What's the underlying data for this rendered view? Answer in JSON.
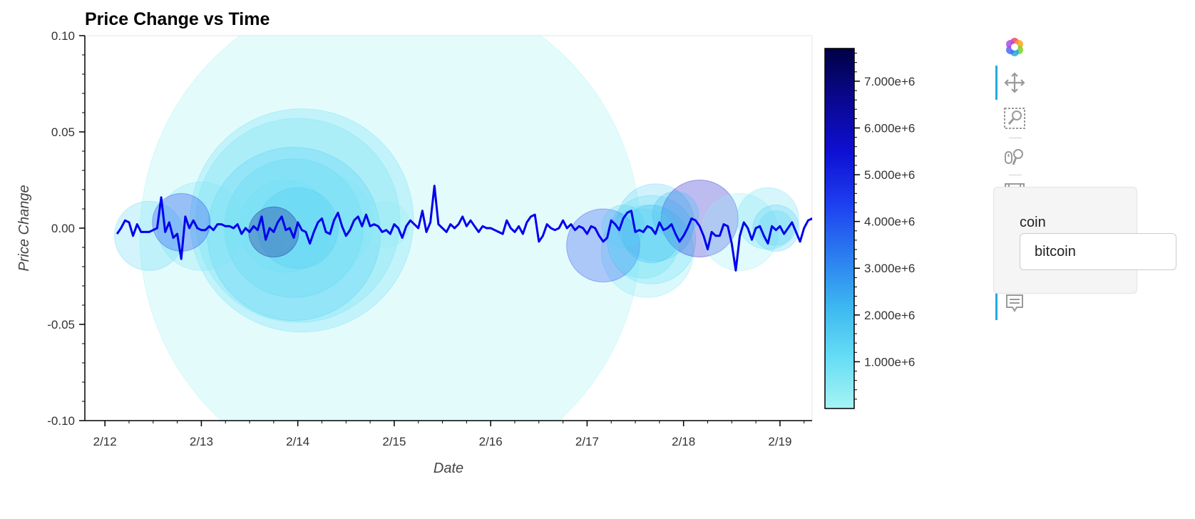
{
  "chart_data": {
    "type": "line",
    "title": "Price Change vs Time",
    "xlabel": "Date",
    "ylabel": "Price Change",
    "xlim": [
      "2/11 19:00",
      "2/19 08:00"
    ],
    "ylim": [
      -0.1,
      0.1
    ],
    "x_ticks": [
      "2/12",
      "2/13",
      "2/14",
      "2/15",
      "2/16",
      "2/17",
      "2/18",
      "2/19"
    ],
    "y_ticks": [
      "0.10",
      "0.05",
      "0.00",
      "-0.05",
      "-0.10"
    ],
    "grid": false,
    "series": [
      {
        "color": "#0000ee",
        "x_start": "2/12 03:00",
        "x_step_hours": 1,
        "values": [
          -0.003,
          0.0,
          0.004,
          0.003,
          -0.004,
          0.002,
          -0.002,
          -0.002,
          -0.002,
          -0.001,
          0.0,
          0.016,
          -0.002,
          0.003,
          -0.005,
          -0.003,
          -0.016,
          0.006,
          0.0,
          0.004,
          0.0,
          -0.001,
          -0.001,
          0.001,
          -0.001,
          0.002,
          0.002,
          0.001,
          0.001,
          0.0,
          0.002,
          -0.003,
          0.0,
          -0.002,
          0.001,
          -0.001,
          0.006,
          -0.006,
          0.0,
          -0.002,
          0.003,
          0.006,
          -0.001,
          0.0,
          -0.005,
          0.003,
          -0.001,
          -0.002,
          -0.008,
          -0.002,
          0.003,
          0.005,
          -0.002,
          -0.003,
          0.004,
          0.008,
          0.001,
          -0.004,
          -0.001,
          0.004,
          0.006,
          0.001,
          0.007,
          0.001,
          0.002,
          0.001,
          -0.002,
          -0.001,
          -0.003,
          0.002,
          0.0,
          -0.005,
          0.001,
          0.004,
          0.002,
          0.0,
          0.009,
          -0.002,
          0.003,
          0.022,
          0.002,
          0.0,
          -0.002,
          0.002,
          0.0,
          0.002,
          0.006,
          0.001,
          0.004,
          0.001,
          -0.002,
          0.001,
          0.0,
          0.0,
          -0.001,
          -0.002,
          -0.003,
          0.004,
          0.0,
          -0.002,
          0.001,
          -0.003,
          0.003,
          0.006,
          0.007,
          -0.007,
          -0.004,
          0.002,
          0.0,
          -0.001,
          0.0,
          0.004,
          0.0,
          0.002,
          -0.001,
          0.001,
          0.0,
          -0.003,
          0.001,
          0.0,
          -0.004,
          -0.007,
          -0.005,
          0.004,
          0.002,
          -0.001,
          0.005,
          0.008,
          0.009,
          -0.002,
          -0.001,
          -0.002,
          0.001,
          0.0,
          -0.003,
          0.003,
          -0.001,
          0.0,
          0.002,
          -0.003,
          -0.007,
          -0.004,
          0.0,
          0.005,
          0.004,
          0.001,
          -0.004,
          -0.011,
          -0.002,
          -0.004,
          -0.004,
          0.002,
          0.001,
          -0.008,
          -0.022,
          -0.004,
          0.003,
          0.0,
          -0.006,
          0.0,
          0.001,
          -0.004,
          -0.008,
          0.001,
          -0.001,
          0.001,
          -0.003,
          0.0,
          0.003,
          -0.002,
          -0.007,
          0.0,
          0.004,
          0.005,
          0.001,
          0.001,
          -0.005,
          0.0,
          0.0,
          0.001,
          0.0,
          -0.003,
          0.004,
          -0.001,
          0.003,
          0.002,
          -0.005,
          0.0,
          -0.013,
          0.005,
          0.001,
          -0.005,
          -0.001,
          0.003,
          -0.013,
          0.009,
          -0.003,
          0.0,
          0.003,
          0.002,
          -0.003,
          0.0,
          0.002,
          0.001,
          -0.002,
          0.004,
          -0.001,
          0.004,
          0.001,
          -0.002,
          0.0,
          0.001,
          0.0,
          0.001
        ]
      }
    ],
    "bubbles": {
      "size_meaning": "volume",
      "points": [
        {
          "x": "2/12 11:00",
          "y": -0.004,
          "volume": 1200000,
          "r_units": 0.018
        },
        {
          "x": "2/12 19:00",
          "y": 0.003,
          "volume": 4500000,
          "r_units": 0.015
        },
        {
          "x": "2/13 00:00",
          "y": 0.001,
          "volume": 700000,
          "r_units": 0.023
        },
        {
          "x": "2/13 18:00",
          "y": -0.002,
          "volume": 6800000,
          "r_units": 0.013
        },
        {
          "x": "2/13 21:00",
          "y": 0.001,
          "volume": 900000,
          "r_units": 0.024
        },
        {
          "x": "2/13 23:00",
          "y": 0.0,
          "volume": 1300000,
          "r_units": 0.036
        },
        {
          "x": "2/13 23:00",
          "y": -0.003,
          "volume": 1500000,
          "r_units": 0.045
        },
        {
          "x": "2/14 00:00",
          "y": 0.004,
          "volume": 900000,
          "r_units": 0.053
        },
        {
          "x": "2/14 01:00",
          "y": 0.004,
          "volume": 1000000,
          "r_units": 0.058
        },
        {
          "x": "2/14 00:00",
          "y": 0.0,
          "volume": 1700000,
          "r_units": 0.021
        },
        {
          "x": "2/14 07:00",
          "y": 0.003,
          "volume": 600000,
          "r_units": 0.025
        },
        {
          "x": "2/14 22:00",
          "y": 0.002,
          "volume": 300000,
          "r_units": 0.012
        },
        {
          "x": "2/14 23:00",
          "y": -0.004,
          "volume": 100000,
          "r_units": 0.13
        },
        {
          "x": "2/17 04:00",
          "y": -0.009,
          "volume": 4300000,
          "r_units": 0.019
        },
        {
          "x": "2/17 09:00",
          "y": 0.001,
          "volume": 1500000,
          "r_units": 0.011
        },
        {
          "x": "2/17 14:00",
          "y": -0.008,
          "volume": 1100000,
          "r_units": 0.018
        },
        {
          "x": "2/17 15:00",
          "y": -0.012,
          "volume": 700000,
          "r_units": 0.024
        },
        {
          "x": "2/17 16:00",
          "y": -0.006,
          "volume": 1100000,
          "r_units": 0.023
        },
        {
          "x": "2/17 16:00",
          "y": -0.003,
          "volume": 2000000,
          "r_units": 0.015
        },
        {
          "x": "2/17 17:00",
          "y": 0.003,
          "volume": 1400000,
          "r_units": 0.02
        },
        {
          "x": "2/17 22:00",
          "y": 0.007,
          "volume": 2000000,
          "r_units": 0.012
        },
        {
          "x": "2/18 04:00",
          "y": 0.005,
          "volume": 5600000,
          "r_units": 0.02
        },
        {
          "x": "2/18 14:00",
          "y": -0.002,
          "volume": 300000,
          "r_units": 0.02
        },
        {
          "x": "2/18 21:00",
          "y": 0.005,
          "volume": 1000000,
          "r_units": 0.016
        },
        {
          "x": "2/18 23:00",
          "y": 0.0,
          "volume": 1500000,
          "r_units": 0.012
        },
        {
          "x": "2/18 23:00",
          "y": 0.0,
          "volume": 1200000,
          "r_units": 0.009
        }
      ]
    },
    "colorbar": {
      "ticks": [
        "7.000e+6",
        "6.000e+6",
        "5.000e+6",
        "4.000e+6",
        "3.000e+6",
        "2.000e+6",
        "1.000e+6"
      ],
      "range": [
        0,
        7700000
      ],
      "colors": [
        "#a5f4f4",
        "#66ddf5",
        "#3cb6f0",
        "#2b7bf0",
        "#1d3ef0",
        "#0e0fd2",
        "#0a0890",
        "#000044"
      ]
    }
  },
  "toolbar": {
    "tools": [
      "bokeh-logo-icon",
      "pan-icon",
      "box-zoom-icon",
      "wheel-zoom-icon",
      "save-icon",
      "reset-icon",
      "hover-icon",
      "hover-icon"
    ]
  },
  "widget": {
    "label": "coin",
    "selected": "bitcoin"
  }
}
